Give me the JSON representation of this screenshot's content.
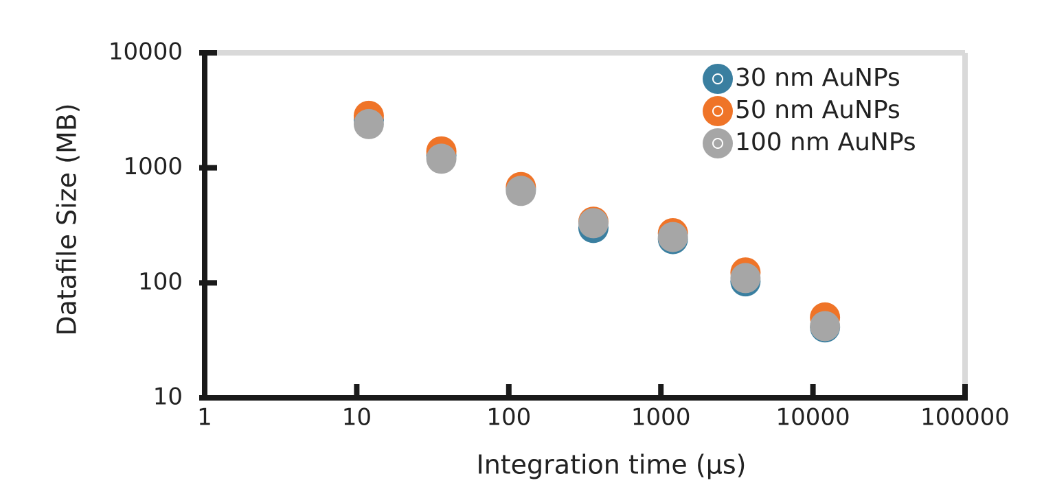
{
  "chart_data": {
    "type": "scatter",
    "xlabel": "Integration time (μs)",
    "ylabel": "Datafile Size (MB)",
    "xscale": "log",
    "yscale": "log",
    "xlim": [
      1,
      100000
    ],
    "ylim": [
      10,
      10000
    ],
    "xticks": [
      1,
      10,
      100,
      1000,
      10000,
      100000
    ],
    "yticks": [
      10,
      100,
      1000,
      10000
    ],
    "legend": "upper right",
    "series": [
      {
        "name": "30 nm AuNPs",
        "color": "#3a7fa0",
        "x": [
          12,
          36,
          120,
          360,
          1200,
          3600,
          12000
        ],
        "values": [
          2600,
          1280,
          650,
          300,
          240,
          103,
          41
        ]
      },
      {
        "name": "50 nm AuNPs",
        "color": "#ef7428",
        "x": [
          12,
          36,
          120,
          360,
          1200,
          3600,
          12000
        ],
        "values": [
          2830,
          1390,
          680,
          340,
          270,
          123,
          50
        ]
      },
      {
        "name": "100 nm AuNPs",
        "color": "#a6a6a6",
        "x": [
          12,
          36,
          120,
          360,
          1200,
          3600,
          12000
        ],
        "values": [
          2400,
          1200,
          630,
          330,
          250,
          110,
          42
        ]
      }
    ]
  }
}
